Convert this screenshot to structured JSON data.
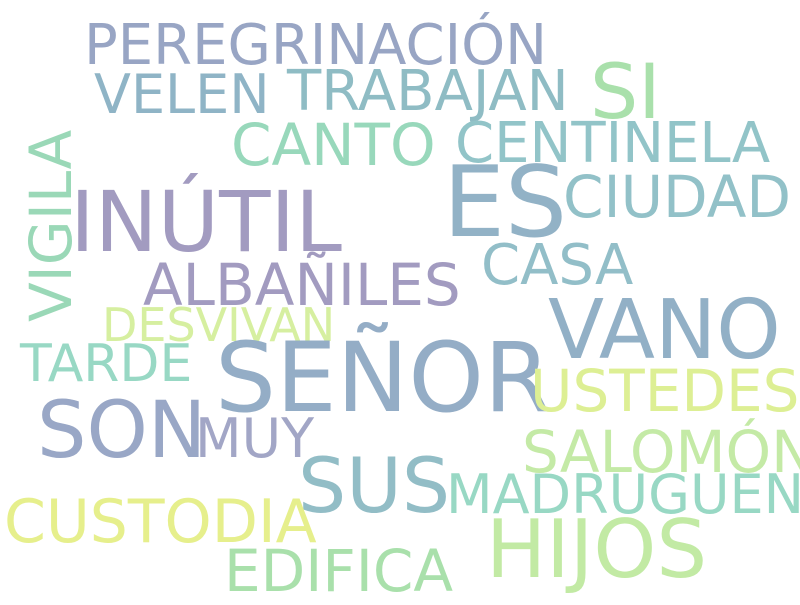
{
  "word_cloud": {
    "words": [
      {
        "text": "PEREGRINACIÓN",
        "color": "#98a5c4"
      },
      {
        "text": "VELEN",
        "color": "#8fb4c6"
      },
      {
        "text": "TRABAJAN",
        "color": "#8fbcc4"
      },
      {
        "text": "SI",
        "color": "#a9e0ab"
      },
      {
        "text": "CANTO",
        "color": "#98d8bb"
      },
      {
        "text": "CENTINELA",
        "color": "#92c4c8"
      },
      {
        "text": "VIGILA",
        "color": "#9ad8b7"
      },
      {
        "text": "INÚTIL",
        "color": "#a29bc0"
      },
      {
        "text": "ES",
        "color": "#92b2c6"
      },
      {
        "text": "CIUDAD",
        "color": "#92c1c8"
      },
      {
        "text": "CASA",
        "color": "#92bec8"
      },
      {
        "text": "ALBAÑILES",
        "color": "#a29bc0"
      },
      {
        "text": "DESVIVAN",
        "color": "#d6efa0"
      },
      {
        "text": "VANO",
        "color": "#92b0c6"
      },
      {
        "text": "TARDE",
        "color": "#98d8c4"
      },
      {
        "text": "SEÑOR",
        "color": "#94adc6"
      },
      {
        "text": "USTEDES",
        "color": "#ddef94"
      },
      {
        "text": "SON",
        "color": "#99a7c6"
      },
      {
        "text": "MUY",
        "color": "#a2a6c6"
      },
      {
        "text": "SALOMÓN",
        "color": "#c4eaa6"
      },
      {
        "text": "SUS",
        "color": "#92bdc6"
      },
      {
        "text": "MADRUGUEN",
        "color": "#98d8c4"
      },
      {
        "text": "CUSTODIA",
        "color": "#e6ef8c"
      },
      {
        "text": "HIJOS",
        "color": "#c2eaa4"
      },
      {
        "text": "EDIFICA",
        "color": "#a9e0ab"
      }
    ]
  }
}
